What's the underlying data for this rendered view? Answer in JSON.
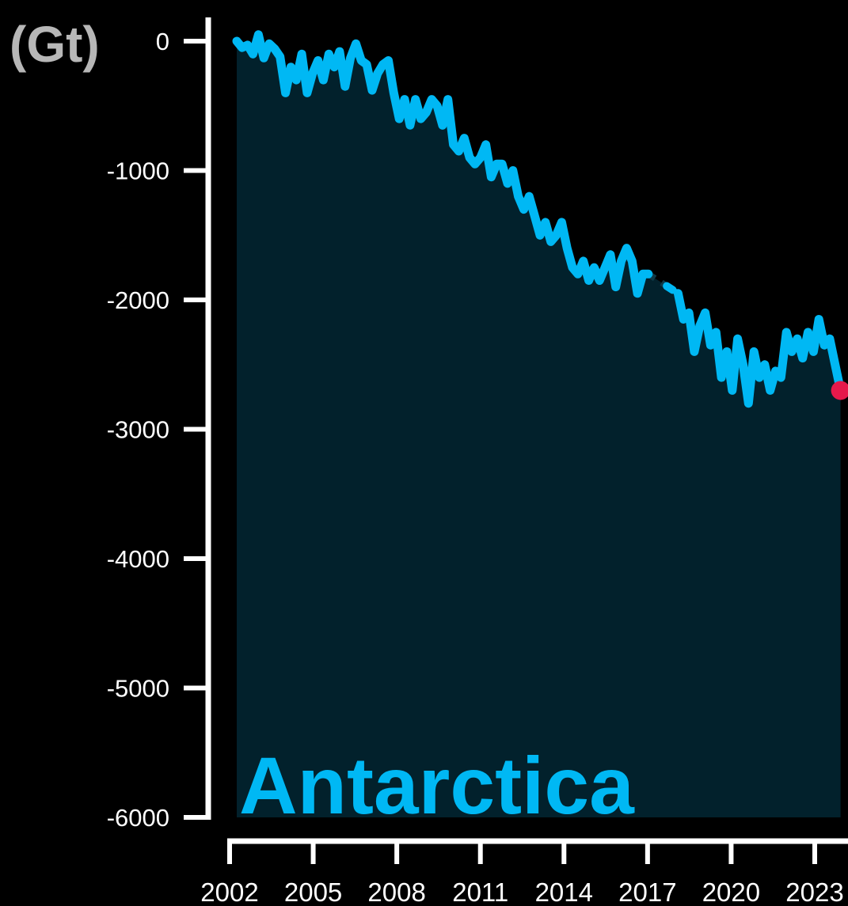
{
  "chart_data": {
    "type": "area",
    "ylabel": "(Gt)",
    "annotation": "Antarctica",
    "ylim": [
      -6000,
      0
    ],
    "xlim": [
      2002.3,
      2024.7
    ],
    "yticks": [
      0,
      -1000,
      -2000,
      -3000,
      -4000,
      -5000,
      -6000
    ],
    "xticks": [
      2002,
      2005,
      2008,
      2011,
      2014,
      2017,
      2020,
      2023
    ],
    "grid": false,
    "colors": {
      "line": "#00b8f4",
      "fill": "#02212c",
      "last_point": "#e6194b",
      "axis": "#ffffff"
    },
    "series": [
      {
        "x": [
          2002.3,
          2002.5,
          2002.7,
          2002.9,
          2003.1,
          2003.3,
          2003.5,
          2003.7,
          2003.9,
          2004.1,
          2004.3,
          2004.5,
          2004.7,
          2004.9,
          2005.1,
          2005.3,
          2005.5,
          2005.7,
          2005.9,
          2006.1,
          2006.3,
          2006.5,
          2006.7,
          2006.9,
          2007.1,
          2007.3,
          2007.5,
          2007.7,
          2007.9,
          2008.1,
          2008.3,
          2008.5,
          2008.7,
          2008.9,
          2009.1,
          2009.3,
          2009.5,
          2009.7,
          2009.9,
          2010.1,
          2010.3,
          2010.5,
          2010.7,
          2010.9,
          2011.1,
          2011.3,
          2011.5,
          2011.7,
          2011.9,
          2012.1,
          2012.3,
          2012.5,
          2012.7,
          2012.9,
          2013.1,
          2013.3,
          2013.5,
          2013.7,
          2013.9,
          2014.1,
          2014.3,
          2014.5,
          2014.7,
          2014.9,
          2015.1,
          2015.3,
          2015.5,
          2015.7,
          2015.9,
          2016.1,
          2016.3,
          2016.5,
          2016.7,
          2016.9,
          2017.1,
          2017.3,
          2017.5
        ],
        "y": [
          0,
          -50,
          -30,
          -100,
          50,
          -130,
          -20,
          -60,
          -120,
          -400,
          -200,
          -300,
          -100,
          -400,
          -250,
          -150,
          -300,
          -100,
          -200,
          -80,
          -350,
          -130,
          -20,
          -150,
          -180,
          -380,
          -250,
          -180,
          -150,
          -400,
          -600,
          -450,
          -650,
          -450,
          -600,
          -550,
          -450,
          -500,
          -650,
          -450,
          -800,
          -850,
          -750,
          -900,
          -950,
          -900,
          -800,
          -1050,
          -950,
          -950,
          -1100,
          -1000,
          -1200,
          -1300,
          -1200,
          -1350,
          -1500,
          -1400,
          -1550,
          -1500,
          -1400,
          -1600,
          -1750,
          -1800,
          -1700,
          -1850,
          -1750,
          -1850,
          -1750,
          -1650,
          -1900,
          -1700,
          -1600,
          -1700,
          -1950,
          -1800,
          -1800
        ]
      },
      {
        "x": [
          2018.6,
          2018.8,
          2019.0,
          2019.2,
          2019.4,
          2019.6,
          2019.8,
          2020.0,
          2020.2,
          2020.4,
          2020.6,
          2020.8,
          2021.0,
          2021.2,
          2021.4,
          2021.6,
          2021.8,
          2022.0,
          2022.2,
          2022.4,
          2022.6,
          2022.8,
          2023.0,
          2023.2,
          2023.4,
          2023.6,
          2023.8,
          2024.0,
          2024.2,
          2024.4,
          2024.6
        ],
        "y": [
          -1950,
          -2150,
          -2100,
          -2400,
          -2200,
          -2100,
          -2350,
          -2250,
          -2600,
          -2400,
          -2700,
          -2300,
          -2500,
          -2800,
          -2400,
          -2600,
          -2500,
          -2700,
          -2550,
          -2600,
          -2250,
          -2400,
          -2300,
          -2450,
          -2250,
          -2400,
          -2150,
          -2350,
          -2300,
          -2500,
          -2700
        ]
      }
    ]
  }
}
